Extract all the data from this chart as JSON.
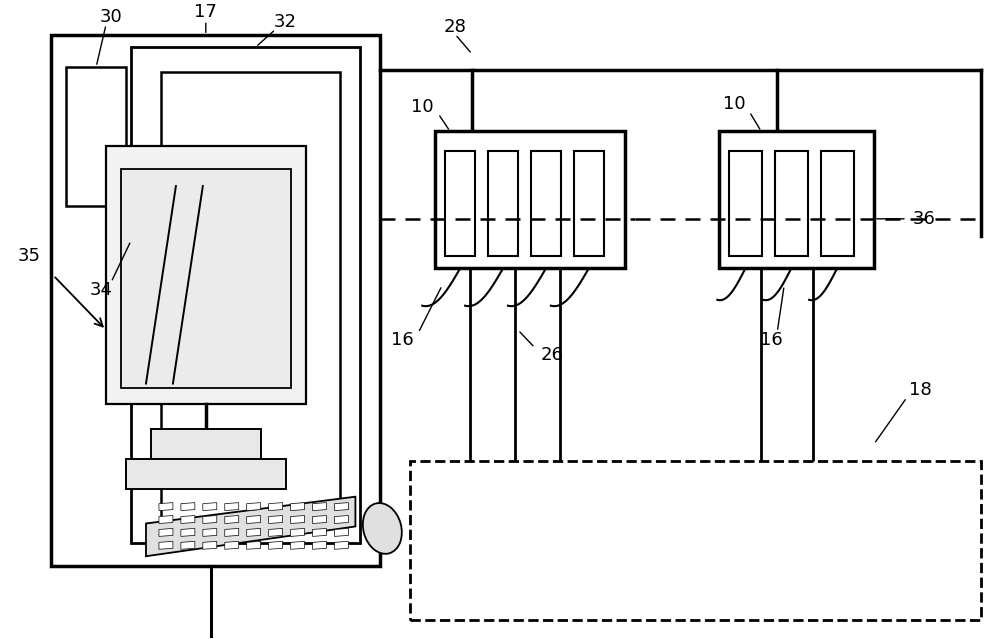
{
  "bg": "#ffffff",
  "lc": "#000000",
  "fig_w": 10.0,
  "fig_h": 6.39,
  "label_fs": 13
}
